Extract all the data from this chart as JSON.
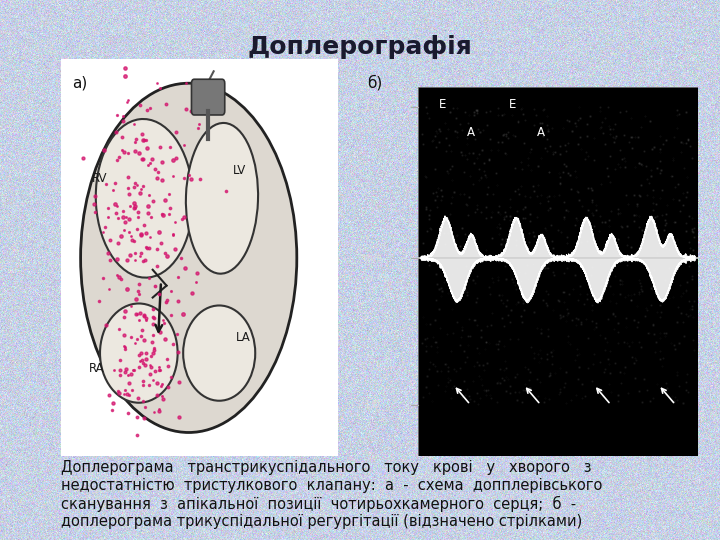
{
  "title": "Доплерографія",
  "title_fontsize": 18,
  "title_color": "#1a1a2e",
  "bg_color_r": 0.78,
  "bg_color_g": 0.82,
  "bg_color_b": 0.9,
  "panel_a_label": "а)",
  "panel_b_label": "б)",
  "caption_lines": [
    "Доплерограма   транстрикуспідального   току   крові   у   хворого   з",
    "недостатністю  тристулкового  клапану:  а  -  схема  допплерівського",
    "сканування  з  апікальної  позиції  чотирьохкамерного  серця;  б  -",
    "доплерограма трикуспідальної регургітації (відзначено стрілками)"
  ],
  "caption_fontsize": 10.5,
  "caption_color": "#111111",
  "label_fontsize": 11,
  "label_color": "#111111"
}
